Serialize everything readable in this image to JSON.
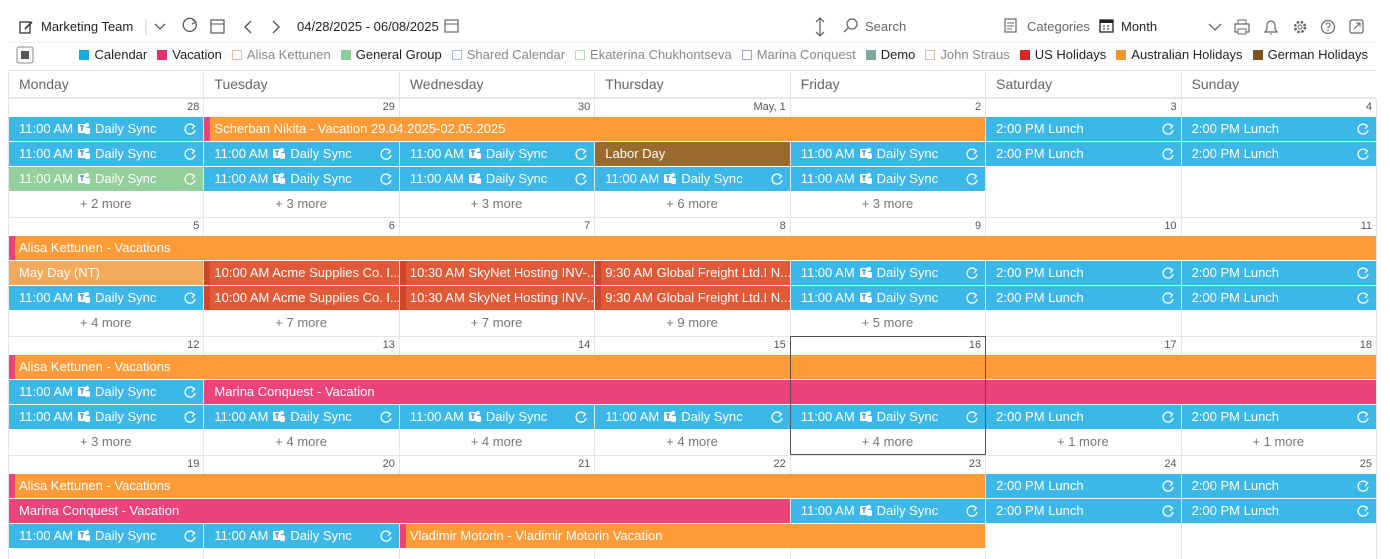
{
  "toolbar": {
    "team": "Marketing Team",
    "date_range": "04/28/2025 - 06/08/2025",
    "search": "Search",
    "categories": "Categories",
    "view": "Month"
  },
  "legend": [
    {
      "name": "Calendar",
      "color": "#1aa8e0",
      "style": "filled"
    },
    {
      "name": "Vacation",
      "color": "#e8306f",
      "style": "filled"
    },
    {
      "name": "Alisa Kettunen",
      "color": "#efb3a3",
      "style": "outline"
    },
    {
      "name": "General Group",
      "color": "#8ccc9a",
      "style": "filled"
    },
    {
      "name": "Shared Calendar",
      "color": "#a9b9e3",
      "style": "outline"
    },
    {
      "name": "Ekaterina Chukhontseva",
      "color": "#b6dfb6",
      "style": "outline"
    },
    {
      "name": "Marina Conquest",
      "color": "#a6a0c2",
      "style": "outline"
    },
    {
      "name": "Demo",
      "color": "#7fa9a0",
      "style": "filled"
    },
    {
      "name": "John Straus",
      "color": "#d9c2a3",
      "style": "outline"
    },
    {
      "name": "US Holidays",
      "color": "#e02424",
      "style": "filled"
    },
    {
      "name": "Australian Holidays",
      "color": "#f0962a",
      "style": "filled"
    },
    {
      "name": "German Holidays",
      "color": "#7a5520",
      "style": "filled"
    }
  ],
  "weekdays": [
    "Monday",
    "Tuesday",
    "Wednesday",
    "Thursday",
    "Friday",
    "Saturday",
    "Sunday"
  ],
  "weeks": [
    {
      "days": [
        {
          "label": "28"
        },
        {
          "label": "29"
        },
        {
          "label": "30"
        },
        {
          "label": "May, 1"
        },
        {
          "label": "2"
        },
        {
          "label": "3"
        },
        {
          "label": "4"
        }
      ],
      "lanes": [
        [
          {
            "day": 0,
            "days": 1,
            "time": "11:00 AM",
            "title": "Daily Sync",
            "color": "#3cb8e8",
            "teams": true,
            "recurring": true
          },
          {
            "day": 1,
            "days": 4,
            "title": "Scherban Nikita - Vacation 29.04.2025-02.05.2025",
            "color": "#fd9b38",
            "stripe": "#ec437b"
          },
          {
            "day": 5,
            "days": 1,
            "time": "2:00 PM",
            "title": "Lunch",
            "color": "#3cb8e8",
            "recurring": true
          },
          {
            "day": 6,
            "days": 1,
            "time": "2:00 PM",
            "title": "Lunch",
            "color": "#3cb8e8",
            "recurring": true
          }
        ],
        [
          {
            "day": 0,
            "days": 1,
            "time": "11:00 AM",
            "title": "Daily Sync",
            "color": "#3cb8e8",
            "teams": true,
            "recurring": true
          },
          {
            "day": 1,
            "days": 1,
            "time": "11:00 AM",
            "title": "Daily Sync",
            "color": "#3cb8e8",
            "teams": true,
            "recurring": true
          },
          {
            "day": 2,
            "days": 1,
            "time": "11:00 AM",
            "title": "Daily Sync",
            "color": "#3cb8e8",
            "teams": true,
            "recurring": true
          },
          {
            "day": 3,
            "days": 1,
            "title": "Labor Day",
            "color": "#9a6b2c"
          },
          {
            "day": 4,
            "days": 1,
            "time": "11:00 AM",
            "title": "Daily Sync",
            "color": "#3cb8e8",
            "teams": true,
            "recurring": true
          },
          {
            "day": 5,
            "days": 1,
            "time": "2:00 PM",
            "title": "Lunch",
            "color": "#3cb8e8",
            "recurring": true
          },
          {
            "day": 6,
            "days": 1,
            "time": "2:00 PM",
            "title": "Lunch",
            "color": "#3cb8e8",
            "recurring": true
          }
        ],
        [
          {
            "day": 0,
            "days": 1,
            "time": "11:00 AM",
            "title": "Daily Sync",
            "color": "#92cf9b",
            "teams": true,
            "recurring": true
          },
          {
            "day": 1,
            "days": 1,
            "time": "11:00 AM",
            "title": "Daily Sync",
            "color": "#3cb8e8",
            "teams": true,
            "recurring": true
          },
          {
            "day": 2,
            "days": 1,
            "time": "11:00 AM",
            "title": "Daily Sync",
            "color": "#3cb8e8",
            "teams": true,
            "recurring": true
          },
          {
            "day": 3,
            "days": 1,
            "time": "11:00 AM",
            "title": "Daily Sync",
            "color": "#3cb8e8",
            "teams": true,
            "recurring": true
          },
          {
            "day": 4,
            "days": 1,
            "time": "11:00 AM",
            "title": "Daily Sync",
            "color": "#3cb8e8",
            "teams": true,
            "recurring": true
          }
        ]
      ],
      "more": [
        "+ 2 more",
        "+ 3 more",
        "+ 3 more",
        "+ 6 more",
        "+ 3 more",
        null,
        null
      ]
    },
    {
      "days": [
        {
          "label": "5"
        },
        {
          "label": "6"
        },
        {
          "label": "7"
        },
        {
          "label": "8"
        },
        {
          "label": "9"
        },
        {
          "label": "10"
        },
        {
          "label": "11"
        }
      ],
      "lanes": [
        [
          {
            "day": 0,
            "days": 7,
            "title": "Alisa Kettunen - Vacations",
            "color": "#fd9b38",
            "stripe": "#ec437b"
          }
        ],
        [
          {
            "day": 0,
            "days": 1,
            "title": "May Day (NT)",
            "color": "#f2a95c"
          },
          {
            "day": 1,
            "days": 1,
            "time": "10:00 AM",
            "title": "Acme Supplies Co. I...",
            "color": "#e05a38",
            "stripe": "#d0452a"
          },
          {
            "day": 2,
            "days": 1,
            "time": "10:30 AM",
            "title": "SkyNet Hosting INV-...",
            "color": "#e05a38",
            "stripe": "#d0452a"
          },
          {
            "day": 3,
            "days": 1,
            "time": "9:30 AM",
            "title": "Global Freight Ltd.I N...",
            "color": "#e05a38",
            "stripe": "#d0452a"
          },
          {
            "day": 4,
            "days": 1,
            "time": "11:00 AM",
            "title": "Daily Sync",
            "color": "#3cb8e8",
            "teams": true,
            "recurring": true
          },
          {
            "day": 5,
            "days": 1,
            "time": "2:00 PM",
            "title": "Lunch",
            "color": "#3cb8e8",
            "recurring": true
          },
          {
            "day": 6,
            "days": 1,
            "time": "2:00 PM",
            "title": "Lunch",
            "color": "#3cb8e8",
            "recurring": true
          }
        ],
        [
          {
            "day": 0,
            "days": 1,
            "time": "11:00 AM",
            "title": "Daily Sync",
            "color": "#3cb8e8",
            "teams": true,
            "recurring": true
          },
          {
            "day": 1,
            "days": 1,
            "time": "10:00 AM",
            "title": "Acme Supplies Co. I...",
            "color": "#e05a38",
            "stripe": "#d0452a"
          },
          {
            "day": 2,
            "days": 1,
            "time": "10:30 AM",
            "title": "SkyNet Hosting INV-...",
            "color": "#e05a38",
            "stripe": "#d0452a"
          },
          {
            "day": 3,
            "days": 1,
            "time": "9:30 AM",
            "title": "Global Freight Ltd.I N...",
            "color": "#e05a38",
            "stripe": "#d0452a"
          },
          {
            "day": 4,
            "days": 1,
            "time": "11:00 AM",
            "title": "Daily Sync",
            "color": "#3cb8e8",
            "teams": true,
            "recurring": true
          },
          {
            "day": 5,
            "days": 1,
            "time": "2:00 PM",
            "title": "Lunch",
            "color": "#3cb8e8",
            "recurring": true
          },
          {
            "day": 6,
            "days": 1,
            "time": "2:00 PM",
            "title": "Lunch",
            "color": "#3cb8e8",
            "recurring": true
          }
        ]
      ],
      "more": [
        "+ 4 more",
        "+ 7 more",
        "+ 7 more",
        "+ 9 more",
        "+ 5 more",
        null,
        null
      ]
    },
    {
      "days": [
        {
          "label": "12"
        },
        {
          "label": "13"
        },
        {
          "label": "14"
        },
        {
          "label": "15"
        },
        {
          "label": "16",
          "today": true
        },
        {
          "label": "17"
        },
        {
          "label": "18"
        }
      ],
      "lanes": [
        [
          {
            "day": 0,
            "days": 7,
            "title": "Alisa Kettunen - Vacations",
            "color": "#fd9b38",
            "stripe": "#ec437b"
          }
        ],
        [
          {
            "day": 0,
            "days": 1,
            "time": "11:00 AM",
            "title": "Daily Sync",
            "color": "#3cb8e8",
            "teams": true,
            "recurring": true
          },
          {
            "day": 1,
            "days": 6,
            "title": "Marina Conquest - Vacation",
            "color": "#ec437b"
          }
        ],
        [
          {
            "day": 0,
            "days": 1,
            "time": "11:00 AM",
            "title": "Daily Sync",
            "color": "#3cb8e8",
            "teams": true,
            "recurring": true
          },
          {
            "day": 1,
            "days": 1,
            "time": "11:00 AM",
            "title": "Daily Sync",
            "color": "#3cb8e8",
            "teams": true,
            "recurring": true
          },
          {
            "day": 2,
            "days": 1,
            "time": "11:00 AM",
            "title": "Daily Sync",
            "color": "#3cb8e8",
            "teams": true,
            "recurring": true
          },
          {
            "day": 3,
            "days": 1,
            "time": "11:00 AM",
            "title": "Daily Sync",
            "color": "#3cb8e8",
            "teams": true,
            "recurring": true
          },
          {
            "day": 4,
            "days": 1,
            "time": "11:00 AM",
            "title": "Daily Sync",
            "color": "#3cb8e8",
            "teams": true,
            "recurring": true
          },
          {
            "day": 5,
            "days": 1,
            "time": "2:00 PM",
            "title": "Lunch",
            "color": "#3cb8e8",
            "recurring": true
          },
          {
            "day": 6,
            "days": 1,
            "time": "2:00 PM",
            "title": "Lunch",
            "color": "#3cb8e8",
            "recurring": true
          }
        ]
      ],
      "more": [
        "+ 3 more",
        "+ 4 more",
        "+ 4 more",
        "+ 4 more",
        "+ 4 more",
        "+ 1 more",
        "+ 1 more"
      ]
    },
    {
      "days": [
        {
          "label": "19"
        },
        {
          "label": "20"
        },
        {
          "label": "21"
        },
        {
          "label": "22"
        },
        {
          "label": "23"
        },
        {
          "label": "24"
        },
        {
          "label": "25"
        }
      ],
      "lanes": [
        [
          {
            "day": 0,
            "days": 5,
            "title": "Alisa Kettunen - Vacations",
            "color": "#fd9b38",
            "stripe": "#ec437b"
          },
          {
            "day": 5,
            "days": 1,
            "time": "2:00 PM",
            "title": "Lunch",
            "color": "#3cb8e8",
            "recurring": true
          },
          {
            "day": 6,
            "days": 1,
            "time": "2:00 PM",
            "title": "Lunch",
            "color": "#3cb8e8",
            "recurring": true
          }
        ],
        [
          {
            "day": 0,
            "days": 4,
            "title": "Marina Conquest - Vacation",
            "color": "#ec437b"
          },
          {
            "day": 4,
            "days": 1,
            "time": "11:00 AM",
            "title": "Daily Sync",
            "color": "#3cb8e8",
            "teams": true,
            "recurring": true
          },
          {
            "day": 5,
            "days": 1,
            "time": "2:00 PM",
            "title": "Lunch",
            "color": "#3cb8e8",
            "recurring": true
          },
          {
            "day": 6,
            "days": 1,
            "time": "2:00 PM",
            "title": "Lunch",
            "color": "#3cb8e8",
            "recurring": true
          }
        ],
        [
          {
            "day": 0,
            "days": 1,
            "time": "11:00 AM",
            "title": "Daily Sync",
            "color": "#3cb8e8",
            "teams": true,
            "recurring": true
          },
          {
            "day": 1,
            "days": 1,
            "time": "11:00 AM",
            "title": "Daily Sync",
            "color": "#3cb8e8",
            "teams": true,
            "recurring": true
          },
          {
            "day": 2,
            "days": 3,
            "title": "Vladimir Motorin - Vladimir Motorin Vacation",
            "color": "#fd9b38",
            "stripe": "#ec437b"
          }
        ]
      ],
      "more": [
        null,
        null,
        null,
        null,
        null,
        null,
        null
      ]
    }
  ]
}
